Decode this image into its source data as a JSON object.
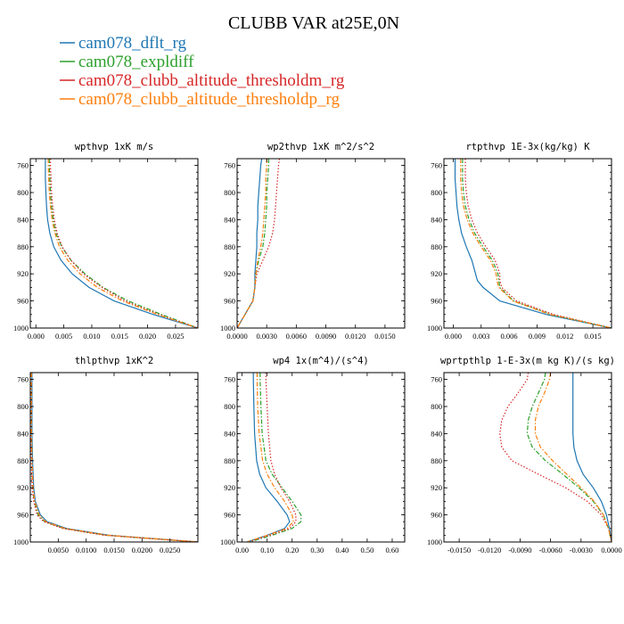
{
  "figure": {
    "title": "CLUBB VAR at25E,0N"
  },
  "legend": [
    {
      "name": "cam078_dflt_rg",
      "color": "#1f77b4",
      "dash": "solid"
    },
    {
      "name": "cam078_expldiff",
      "color": "#2ca02c",
      "dash": "dashdot"
    },
    {
      "name": "cam078_clubb_altitude_thresholdm_rg",
      "color": "#d62728",
      "dash": "dot"
    },
    {
      "name": "cam078_clubb_altitude_thresholdp_rg",
      "color": "#ff7f0e",
      "dash": "dashdot"
    }
  ],
  "chart_data": [
    {
      "type": "line",
      "title": "wpthvp  1xK m/s",
      "xlim": [
        -0.001,
        0.029
      ],
      "ylim": [
        1000,
        750
      ],
      "xticks": [
        "0.000",
        "0.005",
        "0.010",
        "0.015",
        "0.020",
        "0.025"
      ],
      "xtick_values": [
        0,
        0.005,
        0.01,
        0.015,
        0.02,
        0.025
      ],
      "yticks": [
        760,
        800,
        840,
        880,
        920,
        960,
        1000
      ],
      "y": [
        750,
        760,
        780,
        800,
        820,
        840,
        860,
        880,
        900,
        920,
        940,
        960,
        980,
        1000
      ],
      "series": [
        {
          "name": "cam078_dflt_rg",
          "x": [
            0.0017,
            0.0017,
            0.0017,
            0.0018,
            0.0019,
            0.0021,
            0.0025,
            0.0032,
            0.0045,
            0.0065,
            0.0095,
            0.014,
            0.021,
            0.029
          ]
        },
        {
          "name": "cam078_expldiff",
          "x": [
            0.0024,
            0.0024,
            0.0025,
            0.0026,
            0.0028,
            0.0031,
            0.0036,
            0.0046,
            0.0063,
            0.0088,
            0.012,
            0.0165,
            0.0225,
            0.029
          ]
        },
        {
          "name": "cam078_clubb_altitude_thresholdm_rg",
          "x": [
            0.0026,
            0.0026,
            0.0027,
            0.0028,
            0.003,
            0.0033,
            0.0038,
            0.0047,
            0.0063,
            0.0085,
            0.0118,
            0.016,
            0.022,
            0.029
          ]
        },
        {
          "name": "cam078_clubb_altitude_thresholdp_rg",
          "x": [
            0.0022,
            0.0022,
            0.0023,
            0.0024,
            0.0026,
            0.0029,
            0.0034,
            0.0042,
            0.0057,
            0.0079,
            0.011,
            0.0155,
            0.0218,
            0.029
          ]
        }
      ]
    },
    {
      "type": "line",
      "title": "wp2thvp  1xK m^2/s^2",
      "xlim": [
        0.0,
        0.017
      ],
      "ylim": [
        1000,
        750
      ],
      "xticks": [
        "0.0000",
        "0.0030",
        "0.0060",
        "0.0090",
        "0.0120",
        "0.0150"
      ],
      "xtick_values": [
        0,
        0.003,
        0.006,
        0.009,
        0.012,
        0.015
      ],
      "yticks": [
        760,
        800,
        840,
        880,
        920,
        960,
        1000
      ],
      "y": [
        750,
        760,
        780,
        800,
        820,
        840,
        860,
        880,
        900,
        920,
        940,
        960,
        980,
        1000
      ],
      "series": [
        {
          "name": "cam078_dflt_rg",
          "x": [
            0.0025,
            0.0024,
            0.0023,
            0.0022,
            0.0021,
            0.0021,
            0.002,
            0.002,
            0.0019,
            0.0018,
            0.0018,
            0.0016,
            0.0008,
            0.0
          ]
        },
        {
          "name": "cam078_expldiff",
          "x": [
            0.0032,
            0.0032,
            0.0031,
            0.003,
            0.003,
            0.0029,
            0.0028,
            0.0026,
            0.0022,
            0.0019,
            0.0018,
            0.0016,
            0.0008,
            0.0
          ]
        },
        {
          "name": "cam078_clubb_altitude_thresholdm_rg",
          "x": [
            0.0043,
            0.0042,
            0.0041,
            0.004,
            0.0039,
            0.0038,
            0.0036,
            0.0032,
            0.0026,
            0.002,
            0.0018,
            0.0016,
            0.0008,
            0.0
          ]
        },
        {
          "name": "cam078_clubb_altitude_thresholdp_rg",
          "x": [
            0.003,
            0.003,
            0.0029,
            0.0029,
            0.0028,
            0.0027,
            0.0026,
            0.0024,
            0.0021,
            0.0019,
            0.0018,
            0.0016,
            0.0008,
            0.0
          ]
        }
      ]
    },
    {
      "type": "line",
      "title": "rtpthvp  1E-3x(kg/kg) K",
      "xlim": [
        -0.001,
        0.017
      ],
      "ylim": [
        1000,
        750
      ],
      "xticks": [
        "0.000",
        "0.003",
        "0.006",
        "0.009",
        "0.012",
        "0.015"
      ],
      "xtick_values": [
        0,
        0.003,
        0.006,
        0.009,
        0.012,
        0.015
      ],
      "yticks": [
        760,
        800,
        840,
        880,
        920,
        960,
        1000
      ],
      "y": [
        750,
        760,
        780,
        800,
        820,
        840,
        860,
        880,
        900,
        920,
        930,
        940,
        960,
        980,
        1000
      ],
      "series": [
        {
          "name": "cam078_dflt_rg",
          "x": [
            0.0002,
            0.0002,
            0.0002,
            0.0003,
            0.0004,
            0.0006,
            0.0009,
            0.0014,
            0.002,
            0.0024,
            0.0026,
            0.0032,
            0.005,
            0.01,
            0.017
          ]
        },
        {
          "name": "cam078_expldiff",
          "x": [
            0.001,
            0.001,
            0.001,
            0.0011,
            0.0013,
            0.0017,
            0.0023,
            0.0032,
            0.0042,
            0.0048,
            0.0049,
            0.005,
            0.0065,
            0.0105,
            0.017
          ]
        },
        {
          "name": "cam078_clubb_altitude_thresholdm_rg",
          "x": [
            0.0013,
            0.0013,
            0.0013,
            0.0014,
            0.0016,
            0.002,
            0.0026,
            0.0035,
            0.0045,
            0.005,
            0.005,
            0.0052,
            0.0068,
            0.0108,
            0.017
          ]
        },
        {
          "name": "cam078_clubb_altitude_thresholdp_rg",
          "x": [
            0.0008,
            0.0008,
            0.0008,
            0.0009,
            0.0011,
            0.0015,
            0.0021,
            0.003,
            0.004,
            0.0046,
            0.0047,
            0.0049,
            0.0064,
            0.0104,
            0.017
          ]
        }
      ]
    },
    {
      "type": "line",
      "title": "thlpthvp  1xK^2",
      "xlim": [
        0.0,
        0.03
      ],
      "ylim": [
        1000,
        750
      ],
      "xticks": [
        "0.0050",
        "0.0100",
        "0.0150",
        "0.0200",
        "0.0250"
      ],
      "xtick_values": [
        0.005,
        0.01,
        0.015,
        0.02,
        0.025
      ],
      "yticks": [
        760,
        800,
        840,
        880,
        920,
        960,
        1000
      ],
      "y": [
        750,
        760,
        800,
        840,
        880,
        920,
        940,
        960,
        970,
        980,
        990,
        1000
      ],
      "series": [
        {
          "name": "cam078_dflt_rg",
          "x": [
            0.0003,
            0.0003,
            0.0003,
            0.0003,
            0.0004,
            0.0006,
            0.0009,
            0.0018,
            0.003,
            0.0065,
            0.014,
            0.03
          ]
        },
        {
          "name": "cam078_expldiff",
          "x": [
            0.0002,
            0.0002,
            0.0002,
            0.0002,
            0.0003,
            0.0004,
            0.0007,
            0.0014,
            0.0026,
            0.006,
            0.0135,
            0.03
          ]
        },
        {
          "name": "cam078_clubb_altitude_thresholdm_rg",
          "x": [
            0.0001,
            0.0001,
            0.0001,
            0.0001,
            0.0002,
            0.0003,
            0.0006,
            0.0012,
            0.0024,
            0.0058,
            0.0132,
            0.03
          ]
        },
        {
          "name": "cam078_clubb_altitude_thresholdp_rg",
          "x": [
            0.0002,
            0.0002,
            0.0002,
            0.0002,
            0.0003,
            0.0005,
            0.0008,
            0.0016,
            0.0028,
            0.0062,
            0.0138,
            0.03
          ]
        }
      ]
    },
    {
      "type": "line",
      "title": "wp4  1x(m^4)/(s^4)",
      "xlim": [
        -0.02,
        0.65
      ],
      "ylim": [
        1000,
        750
      ],
      "xticks": [
        "0.00",
        "0.10",
        "0.20",
        "0.30",
        "0.40",
        "0.50",
        "0.60"
      ],
      "xtick_values": [
        0,
        0.1,
        0.2,
        0.3,
        0.4,
        0.5,
        0.6
      ],
      "yticks": [
        760,
        800,
        840,
        880,
        920,
        960,
        1000
      ],
      "y": [
        750,
        760,
        800,
        840,
        880,
        900,
        920,
        940,
        960,
        970,
        980,
        990,
        1000
      ],
      "series": [
        {
          "name": "cam078_dflt_rg",
          "x": [
            0.045,
            0.045,
            0.047,
            0.05,
            0.058,
            0.07,
            0.095,
            0.14,
            0.18,
            0.19,
            0.17,
            0.1,
            0.02
          ]
        },
        {
          "name": "cam078_expldiff",
          "x": [
            0.072,
            0.072,
            0.075,
            0.08,
            0.095,
            0.12,
            0.16,
            0.2,
            0.235,
            0.235,
            0.2,
            0.12,
            0.03
          ]
        },
        {
          "name": "cam078_clubb_altitude_thresholdm_rg",
          "x": [
            0.095,
            0.095,
            0.1,
            0.105,
            0.115,
            0.13,
            0.155,
            0.19,
            0.215,
            0.215,
            0.19,
            0.11,
            0.025
          ]
        },
        {
          "name": "cam078_clubb_altitude_thresholdp_rg",
          "x": [
            0.06,
            0.06,
            0.062,
            0.068,
            0.082,
            0.1,
            0.13,
            0.17,
            0.2,
            0.205,
            0.18,
            0.1,
            0.02
          ]
        }
      ]
    },
    {
      "type": "line",
      "title": "wprtpthlp  1-E-3x(m kg K)/(s kg)",
      "xlim": [
        -0.0165,
        0.0
      ],
      "ylim": [
        1000,
        750
      ],
      "xticks": [
        "-0.0150",
        "-0.0120",
        "-0.0090",
        "-0.0060",
        "-0.0030",
        "0.0000"
      ],
      "xtick_values": [
        -0.015,
        -0.012,
        -0.009,
        -0.006,
        -0.003,
        0
      ],
      "yticks": [
        760,
        800,
        840,
        880,
        920,
        960,
        1000
      ],
      "y": [
        750,
        760,
        780,
        800,
        820,
        840,
        860,
        880,
        900,
        920,
        940,
        960,
        980,
        1000
      ],
      "series": [
        {
          "name": "cam078_dflt_rg",
          "x": [
            -0.0038,
            -0.0038,
            -0.0038,
            -0.0038,
            -0.0038,
            -0.0038,
            -0.0037,
            -0.0034,
            -0.0028,
            -0.0018,
            -0.001,
            -0.0005,
            -0.0002,
            0.0
          ]
        },
        {
          "name": "cam078_expldiff",
          "x": [
            -0.0065,
            -0.0066,
            -0.0072,
            -0.0078,
            -0.0082,
            -0.0083,
            -0.0078,
            -0.0065,
            -0.0048,
            -0.0032,
            -0.0018,
            -0.0008,
            -0.0003,
            0.0
          ]
        },
        {
          "name": "cam078_clubb_altitude_thresholdm_rg",
          "x": [
            -0.0082,
            -0.0083,
            -0.0092,
            -0.0102,
            -0.0108,
            -0.011,
            -0.0108,
            -0.0098,
            -0.0072,
            -0.0045,
            -0.0024,
            -0.001,
            -0.0003,
            0.0
          ]
        },
        {
          "name": "cam078_clubb_altitude_thresholdp_rg",
          "x": [
            -0.006,
            -0.0061,
            -0.0066,
            -0.0072,
            -0.0075,
            -0.0075,
            -0.007,
            -0.0058,
            -0.0044,
            -0.003,
            -0.0017,
            -0.0008,
            -0.0003,
            0.0
          ]
        }
      ]
    }
  ]
}
